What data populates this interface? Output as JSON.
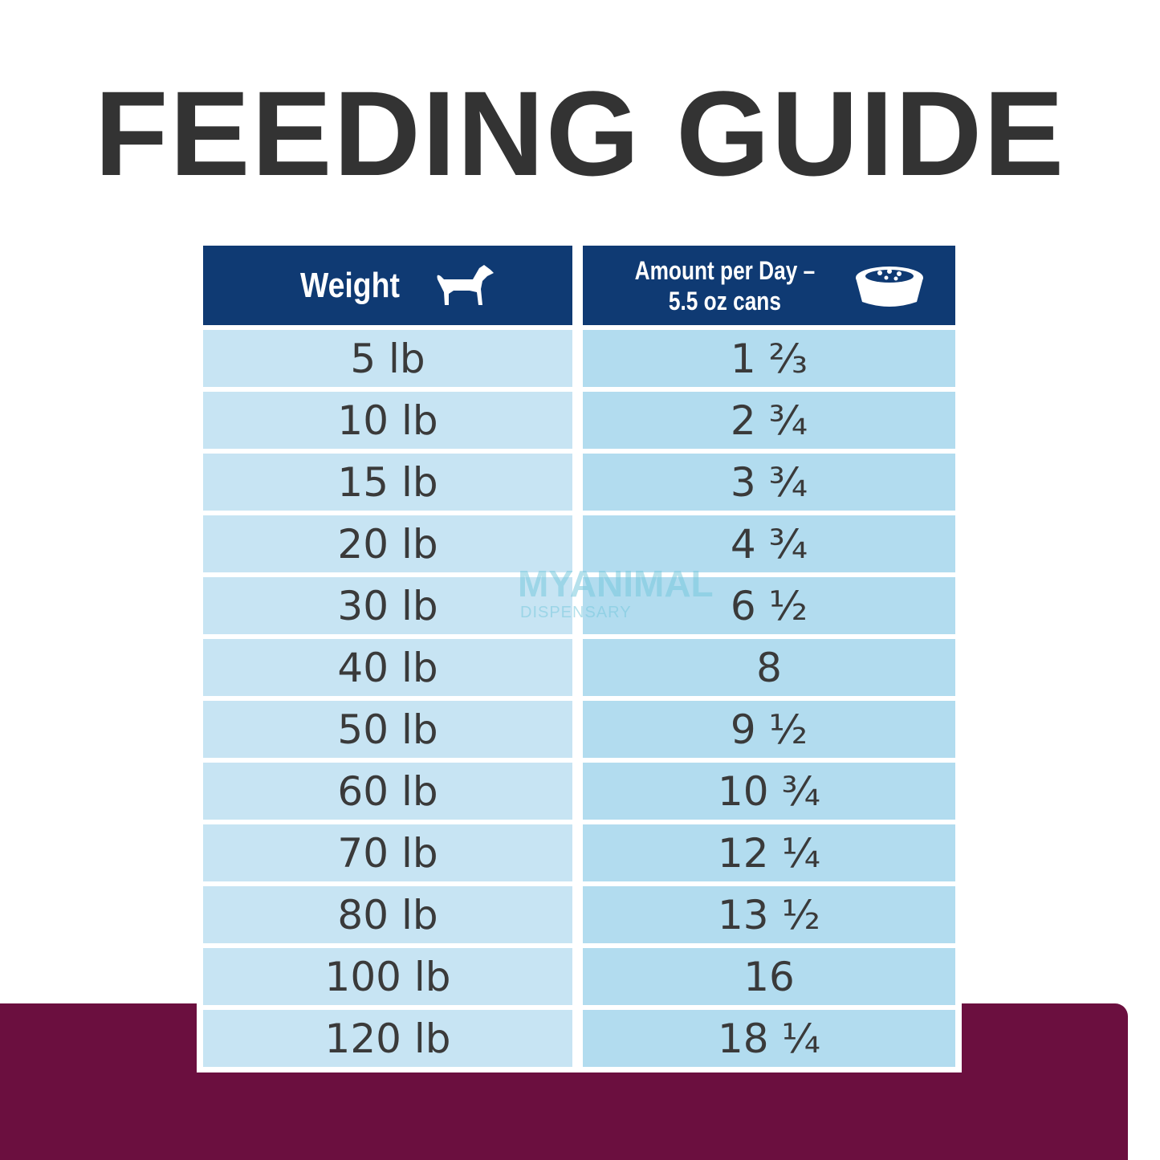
{
  "header": {
    "title": "FEEDING GUIDE"
  },
  "table": {
    "columns": [
      "Weight",
      [
        "Amount per Day –",
        "5.5 oz cans"
      ]
    ],
    "rows": [
      [
        "5 lb",
        "1 ⅔"
      ],
      [
        "10 lb",
        "2 ¾"
      ],
      [
        "15 lb",
        "3 ¾"
      ],
      [
        "20 lb",
        "4 ¾"
      ],
      [
        "30 lb",
        "6 ½"
      ],
      [
        "40 lb",
        "8"
      ],
      [
        "50 lb",
        "9 ½"
      ],
      [
        "60 lb",
        "10 ¾"
      ],
      [
        "70 lb",
        "12 ¼"
      ],
      [
        "80 lb",
        "13 ½"
      ],
      [
        "100 lb",
        "16"
      ],
      [
        "120 lb",
        "18 ¼"
      ]
    ]
  },
  "watermark": {
    "brand": "MYANIMAL",
    "sub": "DISPENSARY"
  }
}
